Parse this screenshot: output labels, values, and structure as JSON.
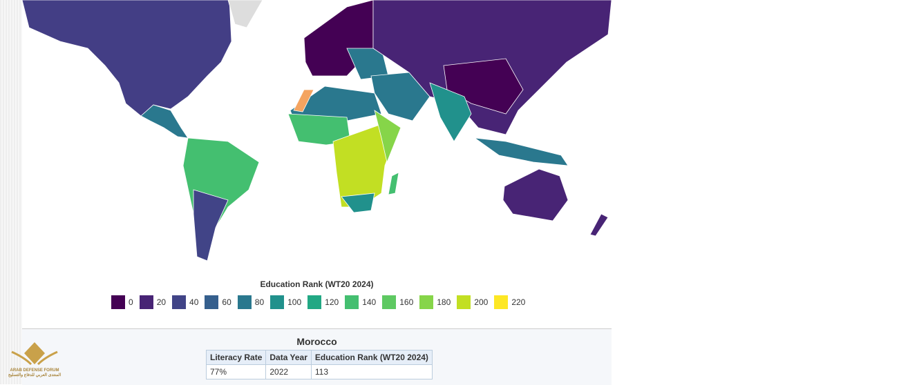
{
  "legend": {
    "title": "Education Rank (WT20 2024)",
    "items": [
      {
        "value": 0,
        "color": "#440154"
      },
      {
        "value": 20,
        "color": "#482475"
      },
      {
        "value": 40,
        "color": "#414487"
      },
      {
        "value": 60,
        "color": "#355f8d"
      },
      {
        "value": 80,
        "color": "#2a788e"
      },
      {
        "value": 100,
        "color": "#21918c"
      },
      {
        "value": 120,
        "color": "#22a884"
      },
      {
        "value": 140,
        "color": "#44bf70"
      },
      {
        "value": 160,
        "color": "#5ec962"
      },
      {
        "value": 180,
        "color": "#86d549"
      },
      {
        "value": 200,
        "color": "#c2df23"
      },
      {
        "value": 220,
        "color": "#fde725"
      }
    ]
  },
  "info_panel": {
    "title": "Morocco",
    "table": {
      "headers": [
        "Literacy Rate",
        "Data Year",
        "Education Rank (WT20 2024)"
      ],
      "rows": [
        [
          "77%",
          "2022",
          "113"
        ]
      ]
    }
  },
  "watermark": {
    "name": "ARAB DEFENSE FORUM",
    "subtitle": "المنتدى العربي للدفاع والتسليح"
  }
}
